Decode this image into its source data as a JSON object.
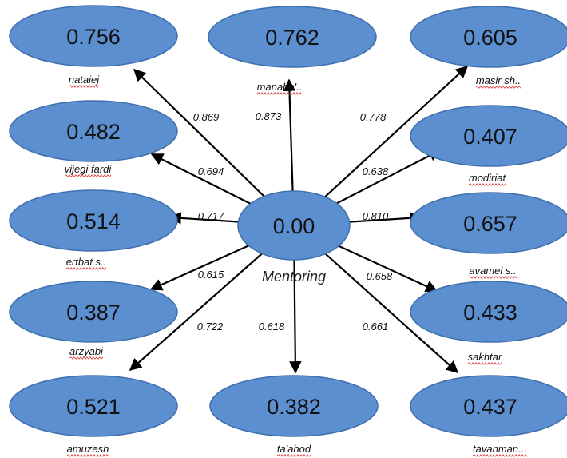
{
  "center": {
    "value": "0.00",
    "label": "Mentoring"
  },
  "nodes": [
    {
      "id": "nataiej",
      "value": "0.756",
      "label": "nataiej",
      "weight": "0.869"
    },
    {
      "id": "manabe",
      "value": "0.762",
      "label": "manabe'..",
      "weight": "0.873"
    },
    {
      "id": "masir",
      "value": "0.605",
      "label": "masir  sh..",
      "weight": "0.778"
    },
    {
      "id": "vijegi",
      "value": "0.482",
      "label": "vijegi fardi",
      "weight": "0.694"
    },
    {
      "id": "modiriat",
      "value": "0.407",
      "label": "modiriat",
      "weight": "0.638"
    },
    {
      "id": "ertbat",
      "value": "0.514",
      "label": "ertbat  s..",
      "weight": "0.717"
    },
    {
      "id": "avamel",
      "value": "0.657",
      "label": "avamel  s..",
      "weight": "0.810"
    },
    {
      "id": "arzyabi",
      "value": "0.387",
      "label": "arzyabi",
      "weight": "0.615"
    },
    {
      "id": "sakhtar",
      "value": "0.433",
      "label": "sakhtar",
      "weight": "0.658"
    },
    {
      "id": "amuzesh",
      "value": "0.521",
      "label": "amuzesh",
      "weight": "0.722"
    },
    {
      "id": "taahod",
      "value": "0.382",
      "label": "ta'ahod",
      "weight": "0.618"
    },
    {
      "id": "tavanman",
      "value": "0.437",
      "label": "tavanman...",
      "weight": "0.661"
    }
  ],
  "colors": {
    "node_fill": "#5b8fd0",
    "node_stroke": "#3f6fae",
    "arrow": "#000000"
  }
}
